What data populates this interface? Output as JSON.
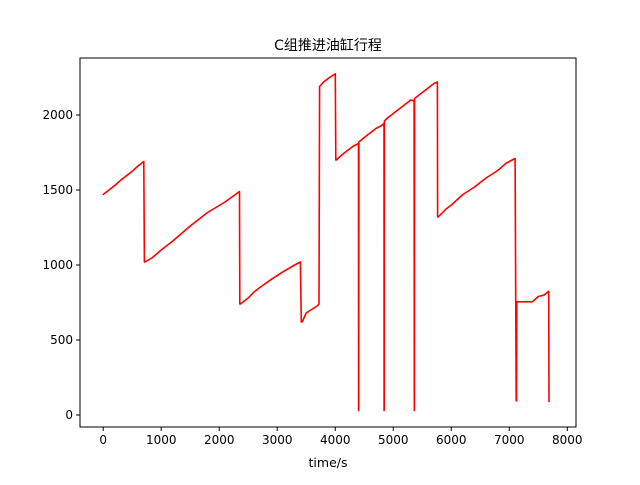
{
  "chart_data": {
    "type": "line",
    "title": "C组推进油缸行程",
    "xlabel": "time/s",
    "ylabel": "",
    "xlim": [
      -400,
      8150
    ],
    "ylim": [
      -80,
      2380
    ],
    "xticks": [
      0,
      1000,
      2000,
      3000,
      4000,
      5000,
      6000,
      7000,
      8000
    ],
    "yticks": [
      0,
      500,
      1000,
      1500,
      2000
    ],
    "grid": false,
    "legend": "none",
    "series": [
      {
        "color": "#ff0000",
        "x": [
          0,
          100,
          200,
          300,
          400,
          500,
          600,
          700,
          710,
          720,
          850,
          1000,
          1200,
          1500,
          1800,
          2100,
          2350,
          2355,
          2365,
          2500,
          2600,
          2700,
          2900,
          3100,
          3300,
          3400,
          3415,
          3430,
          3500,
          3700,
          3720,
          3730,
          3800,
          3900,
          4000,
          4010,
          4020,
          4100,
          4200,
          4300,
          4400,
          4402,
          4404,
          4408,
          4500,
          4600,
          4700,
          4800,
          4840,
          4842,
          4844,
          4848,
          4900,
          5000,
          5100,
          5200,
          5300,
          5360,
          5362,
          5364,
          5368,
          5400,
          5500,
          5600,
          5700,
          5760,
          5765,
          5775,
          5900,
          6000,
          6200,
          6400,
          6600,
          6800,
          6950,
          7100,
          7120,
          7125,
          7130,
          7135,
          7140,
          7400,
          7500,
          7600,
          7680,
          7685
        ],
        "y": [
          1470,
          1500,
          1530,
          1565,
          1595,
          1625,
          1660,
          1690,
          1020,
          1020,
          1050,
          1100,
          1160,
          1260,
          1350,
          1420,
          1490,
          740,
          740,
          780,
          820,
          850,
          905,
          955,
          1000,
          1020,
          620,
          620,
          680,
          730,
          740,
          2190,
          2220,
          2250,
          2275,
          1700,
          1700,
          1730,
          1760,
          1790,
          1810,
          30,
          30,
          1820,
          1850,
          1880,
          1910,
          1930,
          1945,
          30,
          30,
          1960,
          1980,
          2010,
          2040,
          2070,
          2100,
          2095,
          30,
          30,
          2110,
          2120,
          2150,
          2180,
          2210,
          2220,
          1320,
          1320,
          1370,
          1400,
          1470,
          1520,
          1580,
          1630,
          1680,
          1710,
          95,
          95,
          755,
          755,
          755,
          755,
          790,
          800,
          825,
          90
        ]
      }
    ]
  }
}
